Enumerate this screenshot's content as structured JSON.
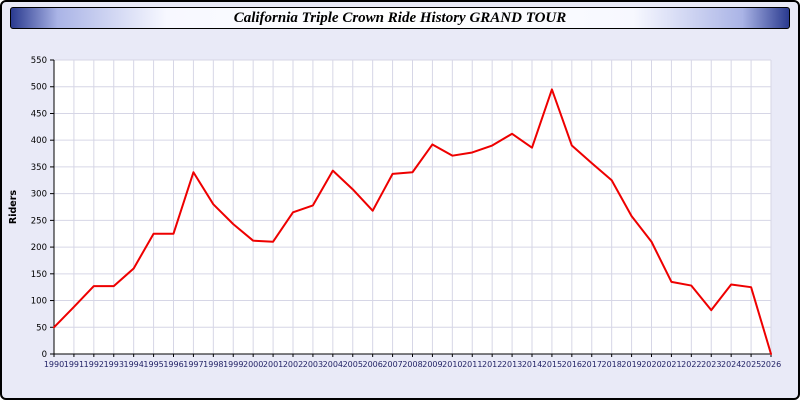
{
  "header": {
    "title": "California Triple Crown Ride History GRAND TOUR"
  },
  "chart_data": {
    "type": "line",
    "title": "California Triple Crown Ride History GRAND TOUR",
    "xlabel": "",
    "ylabel": "Riders",
    "ylim": [
      0,
      550
    ],
    "ytick_step": 50,
    "grid": true,
    "legend": "none",
    "plot_bg": "#ffffff",
    "grid_color": "#d6d6e6",
    "axis_color": "#000000",
    "x_label_color": "#222266",
    "y_label_color": "#000000",
    "x": [
      1990,
      1991,
      1992,
      1993,
      1994,
      1995,
      1996,
      1997,
      1998,
      1999,
      2000,
      2001,
      2002,
      2003,
      2004,
      2005,
      2006,
      2007,
      2008,
      2009,
      2010,
      2011,
      2012,
      2013,
      2014,
      2015,
      2016,
      2017,
      2018,
      2019,
      2020,
      2021,
      2022,
      2023,
      2024,
      2025,
      2026
    ],
    "series": [
      {
        "name": "Riders",
        "color": "#ee0000",
        "values": [
          50,
          88,
          127,
          127,
          160,
          225,
          225,
          340,
          280,
          243,
          212,
          210,
          265,
          278,
          343,
          308,
          268,
          337,
          340,
          392,
          371,
          377,
          390,
          412,
          386,
          495,
          390,
          357,
          325,
          258,
          210,
          135,
          128,
          82,
          130,
          125,
          0
        ]
      }
    ]
  }
}
